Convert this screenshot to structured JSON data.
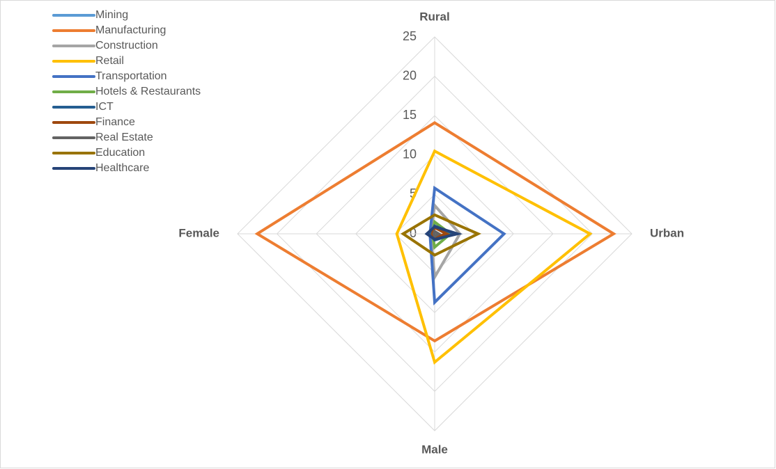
{
  "chart_data": {
    "type": "radar",
    "categories": [
      "Rural",
      "Urban",
      "Male",
      "Female"
    ],
    "rlim": [
      0,
      25
    ],
    "rticks": [
      0,
      5,
      10,
      15,
      20,
      25
    ],
    "grid": true,
    "legend": "top-left",
    "series": [
      {
        "name": "Mining",
        "color": "#5b9bd5",
        "values": [
          0.3,
          0.5,
          0.3,
          0.2
        ]
      },
      {
        "name": "Manufacturing",
        "color": "#ed7d31",
        "values": [
          14.1,
          22.7,
          13.6,
          22.5
        ]
      },
      {
        "name": "Construction",
        "color": "#a5a5a5",
        "values": [
          3.6,
          3.2,
          5.5,
          0.5
        ]
      },
      {
        "name": "Retail",
        "color": "#ffc000",
        "values": [
          10.5,
          19.7,
          16.3,
          4.8
        ]
      },
      {
        "name": "Transportation",
        "color": "#4472c4",
        "values": [
          5.8,
          8.8,
          8.7,
          0.6
        ]
      },
      {
        "name": "Hotels & Restaurants",
        "color": "#70ad47",
        "values": [
          1.5,
          2,
          1.7,
          0.3
        ]
      },
      {
        "name": "ICT",
        "color": "#255e91",
        "values": [
          1,
          2.5,
          0.8,
          0.5
        ]
      },
      {
        "name": "Finance",
        "color": "#9e480e",
        "values": [
          0.8,
          1.5,
          0.5,
          0.3
        ]
      },
      {
        "name": "Real Estate",
        "color": "#636363",
        "values": [
          0.3,
          0.5,
          0.3,
          0.1
        ]
      },
      {
        "name": "Education",
        "color": "#997300",
        "values": [
          2.4,
          5.5,
          2.7,
          4
        ]
      },
      {
        "name": "Healthcare",
        "color": "#264478",
        "values": [
          0.9,
          2.9,
          0.7,
          1
        ]
      }
    ]
  }
}
